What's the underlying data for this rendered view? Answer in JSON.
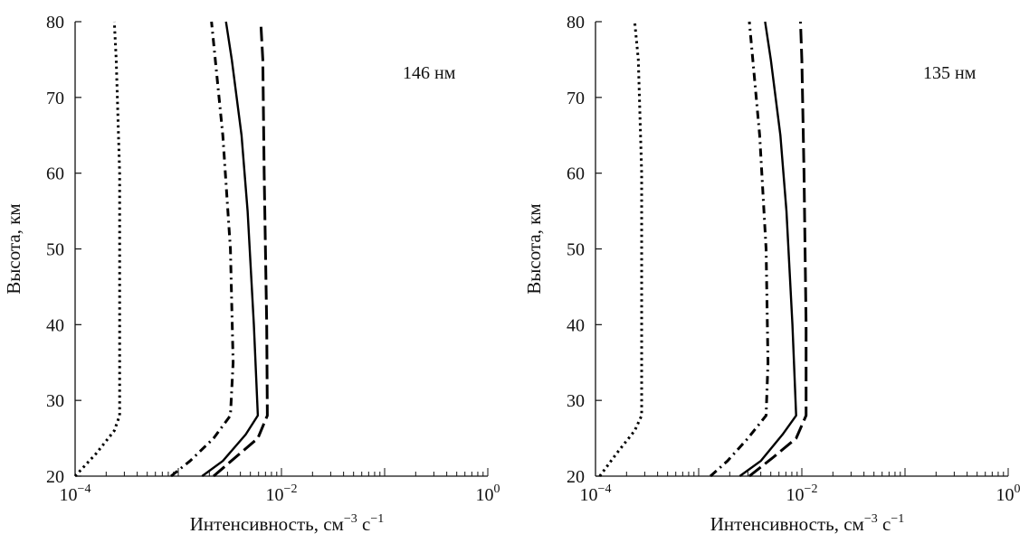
{
  "chart_data": [
    {
      "type": "line",
      "annotation": "146 нм",
      "xlabel": "Интенсивность, см",
      "xlabel_sup1": "−3",
      "xlabel_mid": " с",
      "xlabel_sup2": "−1",
      "ylabel": "Высота, км",
      "x_scale": "log",
      "xlim": [
        0.0001,
        1
      ],
      "ylim": [
        20,
        80
      ],
      "x_tick_labels": [
        {
          "base": "10",
          "exp": "−4",
          "value": 0.0001
        },
        {
          "base": "10",
          "exp": "−2",
          "value": 0.01
        },
        {
          "base": "10",
          "exp": "0",
          "value": 1
        }
      ],
      "y_ticks": [
        20,
        30,
        40,
        50,
        60,
        70,
        80
      ],
      "grid": false,
      "legend": "none",
      "series": [
        {
          "style": "dotted",
          "points": [
            [
              0.0001,
              20
            ],
            [
              0.00016,
              23
            ],
            [
              0.00024,
              26
            ],
            [
              0.00027,
              28
            ],
            [
              0.00027,
              40
            ],
            [
              0.00027,
              60
            ],
            [
              0.00025,
              75
            ],
            [
              0.00024,
              80
            ]
          ]
        },
        {
          "style": "dash-dot",
          "points": [
            [
              0.00085,
              20
            ],
            [
              0.0013,
              22
            ],
            [
              0.0022,
              25
            ],
            [
              0.0032,
              28
            ],
            [
              0.0034,
              35
            ],
            [
              0.0032,
              50
            ],
            [
              0.0027,
              65
            ],
            [
              0.0021,
              80
            ]
          ]
        },
        {
          "style": "solid",
          "points": [
            [
              0.0017,
              20
            ],
            [
              0.0027,
              22
            ],
            [
              0.0045,
              25.5
            ],
            [
              0.0059,
              28
            ],
            [
              0.0054,
              40
            ],
            [
              0.0047,
              55
            ],
            [
              0.0041,
              65
            ],
            [
              0.0033,
              75
            ],
            [
              0.0029,
              80
            ]
          ]
        },
        {
          "style": "dashed",
          "points": [
            [
              0.0022,
              20
            ],
            [
              0.0036,
              22.5
            ],
            [
              0.0059,
              25
            ],
            [
              0.0073,
              28
            ],
            [
              0.0072,
              40
            ],
            [
              0.0068,
              60
            ],
            [
              0.0066,
              75
            ],
            [
              0.0063,
              80
            ]
          ]
        }
      ]
    },
    {
      "type": "line",
      "annotation": "135 нм",
      "xlabel": "Интенсивность, см",
      "xlabel_sup1": "−3",
      "xlabel_mid": " с",
      "xlabel_sup2": "−1",
      "ylabel": "Высота, км",
      "x_scale": "log",
      "xlim": [
        0.0001,
        1
      ],
      "ylim": [
        20,
        80
      ],
      "x_tick_labels": [
        {
          "base": "10",
          "exp": "−4",
          "value": 0.0001
        },
        {
          "base": "10",
          "exp": "−2",
          "value": 0.01
        },
        {
          "base": "10",
          "exp": "0",
          "value": 1
        }
      ],
      "y_ticks": [
        20,
        30,
        40,
        50,
        60,
        70,
        80
      ],
      "grid": false,
      "legend": "none",
      "series": [
        {
          "style": "dotted",
          "points": [
            [
              0.00011,
              20
            ],
            [
              0.00016,
              23
            ],
            [
              0.00024,
              26
            ],
            [
              0.00028,
              28
            ],
            [
              0.00028,
              40
            ],
            [
              0.00028,
              60
            ],
            [
              0.00026,
              75
            ],
            [
              0.00024,
              80
            ]
          ]
        },
        {
          "style": "dash-dot",
          "points": [
            [
              0.0013,
              20
            ],
            [
              0.0019,
              22
            ],
            [
              0.003,
              25
            ],
            [
              0.0045,
              28
            ],
            [
              0.0047,
              35
            ],
            [
              0.0045,
              50
            ],
            [
              0.0039,
              65
            ],
            [
              0.0031,
              80
            ]
          ]
        },
        {
          "style": "solid",
          "points": [
            [
              0.0025,
              20
            ],
            [
              0.004,
              22
            ],
            [
              0.0065,
              25.5
            ],
            [
              0.0088,
              28
            ],
            [
              0.0081,
              40
            ],
            [
              0.0071,
              55
            ],
            [
              0.0062,
              65
            ],
            [
              0.005,
              75
            ],
            [
              0.0044,
              80
            ]
          ]
        },
        {
          "style": "dashed",
          "points": [
            [
              0.0031,
              20
            ],
            [
              0.0053,
              22.5
            ],
            [
              0.0088,
              25
            ],
            [
              0.011,
              28
            ],
            [
              0.011,
              40
            ],
            [
              0.0105,
              60
            ],
            [
              0.01,
              75
            ],
            [
              0.0097,
              80
            ]
          ]
        }
      ]
    }
  ]
}
